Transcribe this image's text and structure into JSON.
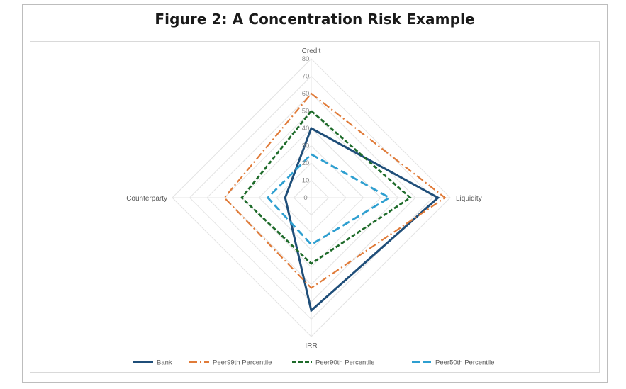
{
  "figure": {
    "title": "Figure 2: A Concentration Risk Example"
  },
  "chart_data": {
    "type": "radar",
    "axes": [
      "Credit",
      "Liquidity",
      "IRR",
      "Counterparty"
    ],
    "ticks": [
      0,
      10,
      20,
      30,
      40,
      50,
      60,
      70,
      80
    ],
    "rlim": [
      0,
      80
    ],
    "grid": true,
    "legend_position": "bottom",
    "series": [
      {
        "name": "Bank",
        "values": [
          40,
          73,
          65,
          15
        ],
        "color": "#1f4e79",
        "dash": "solid"
      },
      {
        "name": "Peer99th Percentile",
        "values": [
          60,
          77,
          52,
          50
        ],
        "color": "#e07b39",
        "dash": "dashdot"
      },
      {
        "name": "Peer90th Percentile",
        "values": [
          50,
          57,
          38,
          40
        ],
        "color": "#1e6b2a",
        "dash": "dash"
      },
      {
        "name": "Peer50th Percentile",
        "values": [
          25,
          45,
          27,
          25
        ],
        "color": "#2e9fd0",
        "dash": "longdash"
      }
    ]
  }
}
